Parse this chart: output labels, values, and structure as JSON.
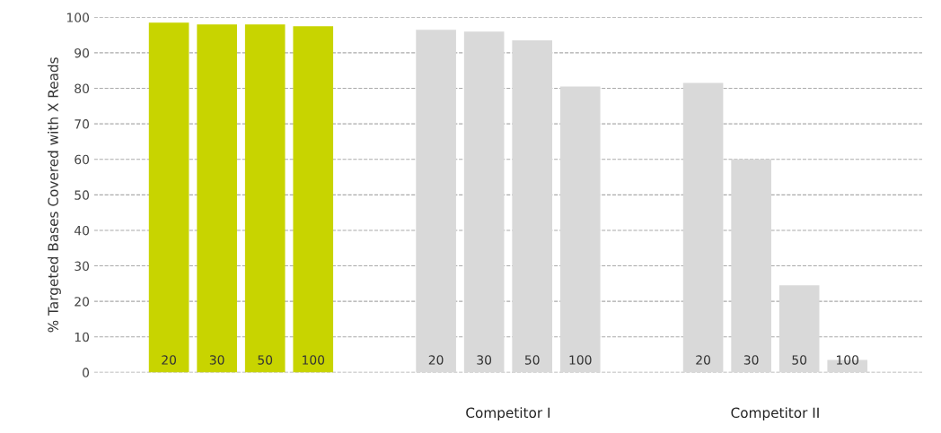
{
  "chart_data": {
    "type": "bar",
    "ylabel": "% Targeted Bases Covered with X Reads",
    "categories": [
      null,
      "Competitor I",
      "Competitor II"
    ],
    "series": [
      {
        "name": "20",
        "colors": [
          "#c8d400",
          "#d9d9d9",
          "#d9d9d9"
        ],
        "values": [
          98.5,
          96.5,
          81.5
        ]
      },
      {
        "name": "30",
        "colors": [
          "#c8d400",
          "#d9d9d9",
          "#d9d9d9"
        ],
        "values": [
          98,
          96,
          60
        ]
      },
      {
        "name": "50",
        "colors": [
          "#c8d400",
          "#d9d9d9",
          "#d9d9d9"
        ],
        "values": [
          98,
          93.5,
          24.5
        ]
      },
      {
        "name": "100",
        "colors": [
          "#c8d400",
          "#d9d9d9",
          "#d9d9d9"
        ],
        "values": [
          97.5,
          80.5,
          3.5
        ]
      }
    ],
    "ylim": [
      0,
      100
    ],
    "yticks": [
      0,
      10,
      20,
      30,
      40,
      50,
      60,
      70,
      80,
      90,
      100
    ],
    "grid": "y",
    "line_style": "dashed"
  }
}
